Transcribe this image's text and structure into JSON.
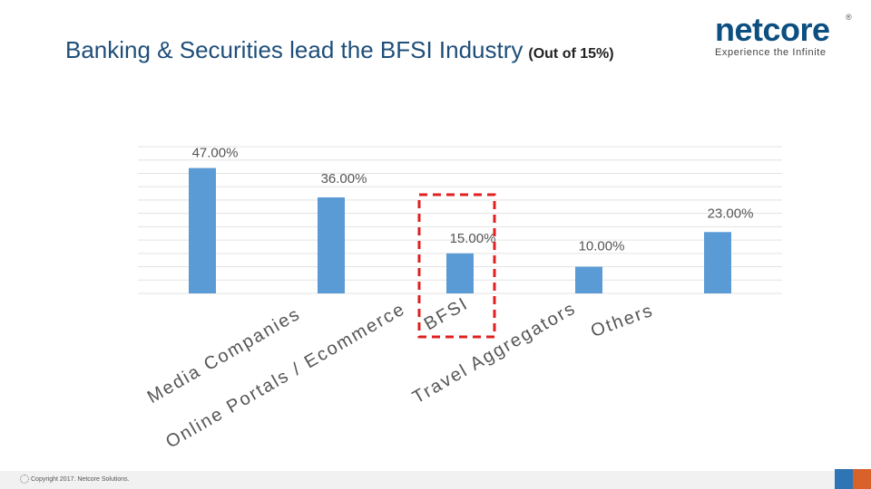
{
  "header": {
    "title": "Banking & Securities lead the BFSI Industry",
    "subtitle": "(Out of 15%)"
  },
  "logo": {
    "name": "netcore",
    "tagline": "Experience the Infinite",
    "registered": "®"
  },
  "footer": {
    "copyright": "Copyright 2017. Netcore Solutions."
  },
  "colors": {
    "bar": "#5b9bd5",
    "highlight": "#e02020",
    "title": "#1f4e79"
  },
  "chart_data": {
    "type": "bar",
    "title": "",
    "xlabel": "",
    "ylabel": "",
    "ylim": [
      0,
      55
    ],
    "grid": true,
    "categories": [
      "Media Companies",
      "Online Portals / Ecommerce",
      "BFSI",
      "Travel Aggregators",
      "Others"
    ],
    "values": [
      47,
      36,
      15,
      10,
      23
    ],
    "data_labels": [
      "47.00%",
      "36.00%",
      "15.00%",
      "10.00%",
      "23.00%"
    ],
    "highlighted_category": "BFSI"
  }
}
